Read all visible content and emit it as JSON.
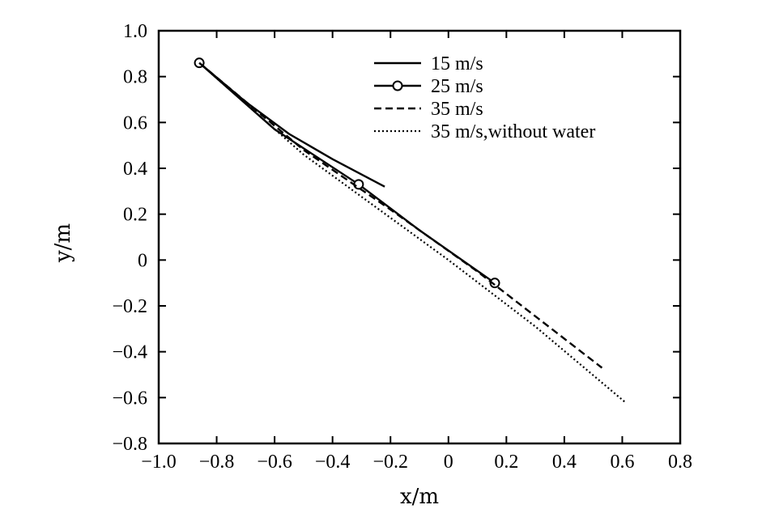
{
  "chart_data": {
    "type": "line",
    "xlabel": "x/m",
    "ylabel": "y/m",
    "xlim": [
      -1.0,
      0.8
    ],
    "ylim": [
      -0.8,
      1.0
    ],
    "xticks": [
      "−1.0",
      "−0.8",
      "−0.6",
      "−0.4",
      "−0.2",
      "0",
      "0.2",
      "0.4",
      "0.6",
      "0.8"
    ],
    "yticks": [
      "1.0",
      "0.8",
      "0.6",
      "0.4",
      "0.2",
      "0",
      "−0.2",
      "−0.4",
      "−0.6",
      "−0.8"
    ],
    "legend_position": "top-right",
    "grid": false,
    "series": [
      {
        "name": "15 m/s",
        "style": "solid",
        "marker": "none",
        "x": [
          -0.86,
          -0.7,
          -0.55,
          -0.4,
          -0.22
        ],
        "y": [
          0.86,
          0.69,
          0.55,
          0.44,
          0.32
        ]
      },
      {
        "name": "25 m/s",
        "style": "solid",
        "marker": "circle",
        "x": [
          -0.86,
          -0.6,
          -0.31,
          -0.1,
          0.16
        ],
        "y": [
          0.86,
          0.57,
          0.33,
          0.13,
          -0.1
        ]
      },
      {
        "name": "35 m/s",
        "style": "dashed",
        "marker": "none",
        "x": [
          -0.86,
          -0.5,
          -0.2,
          0.1,
          0.53
        ],
        "y": [
          0.86,
          0.48,
          0.22,
          -0.05,
          -0.47
        ]
      },
      {
        "name": "35 m/s,without water",
        "style": "dotted",
        "marker": "none",
        "x": [
          -0.86,
          -0.5,
          0.0,
          0.3,
          0.61
        ],
        "y": [
          0.86,
          0.46,
          0.0,
          -0.29,
          -0.62
        ]
      }
    ]
  }
}
